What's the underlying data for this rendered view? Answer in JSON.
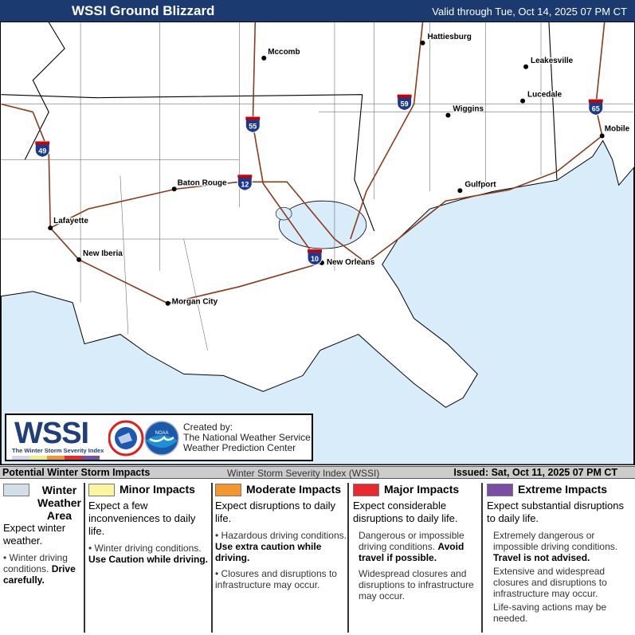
{
  "header": {
    "title": "WSSI Ground Blizzard",
    "valid": "Valid through Tue, Oct 14, 2025 07 PM CT"
  },
  "colors": {
    "header": "#1b3a70",
    "water": "#d8ecfa",
    "roads": "#8b3a1a",
    "winter_weather": "#d3dfe8",
    "minor": "#fbf5a0",
    "moderate": "#f4962f",
    "major": "#e82a2f",
    "extreme": "#7a4fa3"
  },
  "map": {
    "cities": [
      "Hattiesburg",
      "Mccomb",
      "Leakesville",
      "Lucedale",
      "Wiggins",
      "Mobile",
      "Gulfport",
      "Baton Rouge",
      "Lafayette",
      "New Iberia",
      "New Orleans",
      "Morgan City"
    ],
    "interstates": [
      "49",
      "55",
      "59",
      "12",
      "10",
      "65"
    ]
  },
  "logo": {
    "wordmark": "WSSI",
    "subtitle": "The Winter Storm Severity Index",
    "created_by": "Created by:",
    "org1": "The National Weather Service",
    "org2": "Weather Prediction Center",
    "nws": "NATIONAL WEATHER SERVICE",
    "noaa": "NOAA"
  },
  "legend": {
    "title": "Potential Winter Storm Impacts",
    "index": "Winter Storm Severity Index (WSSI)",
    "issued": "Issued: Sat, Oct 11, 2025 07 PM CT",
    "columns": [
      {
        "title": "Winter Weather Area",
        "head": "Expect winter weather.",
        "b1": "Winter driving conditions.",
        "b1b": "Drive carefully."
      },
      {
        "title": "Minor Impacts",
        "head": "Expect a few inconveniences to daily life.",
        "b1": "Winter driving conditions.",
        "b1b": "Use Caution while driving."
      },
      {
        "title": "Moderate Impacts",
        "head": "Expect disruptions to daily life.",
        "b1": "Hazardous driving conditions.",
        "b1b": "Use extra caution while driving.",
        "b2": "Closures and disruptions to infrastructure may occur."
      },
      {
        "title": "Major Impacts",
        "head": "Expect considerable disruptions to daily life.",
        "b1": "Dangerous or impossible driving conditions.",
        "b1b": "Avoid travel if possible.",
        "b2": "Widespread closures and disruptions to infrastructure may occur."
      },
      {
        "title": "Extreme Impacts",
        "head": "Expect substantial disruptions to daily life.",
        "b1": "Extremely dangerous or impossible driving conditions.",
        "b1b": "Travel is not advised.",
        "b2": "Extensive and widespread closures and disruptions to infrastructure may occur.",
        "b3": "Life-saving actions may be needed."
      }
    ]
  }
}
